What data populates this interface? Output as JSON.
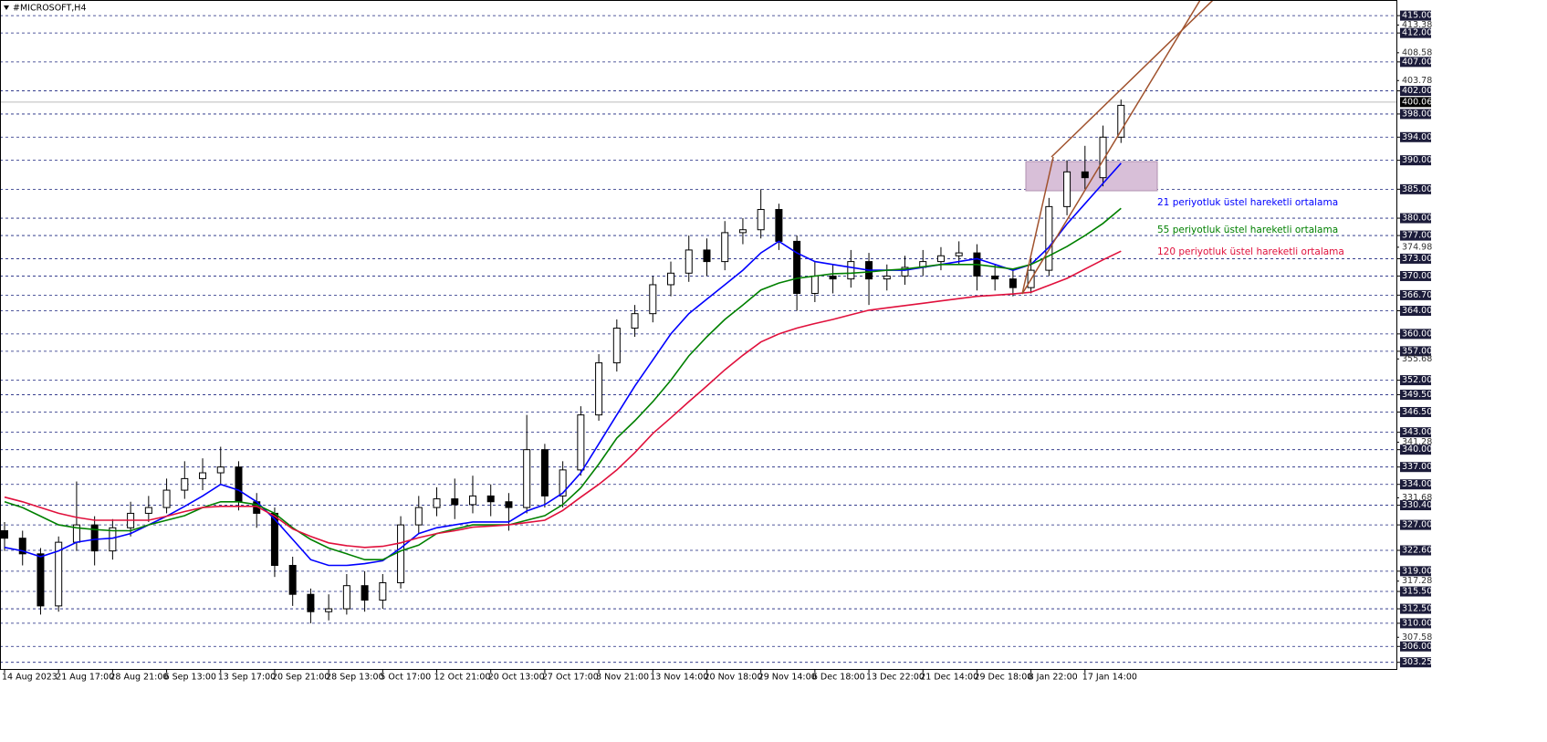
{
  "chart_data": {
    "type": "candlestick",
    "title": "#MICROSOFT,H4",
    "categories": [
      "14 Aug 2023",
      null,
      null,
      "21 Aug 17:00",
      null,
      null,
      "28 Aug 21:00",
      null,
      null,
      "6 Sep 13:00",
      null,
      null,
      "13 Sep 17:00",
      null,
      null,
      "20 Sep 21:00",
      null,
      null,
      "28 Sep 13:00",
      null,
      null,
      "5 Oct 17:00",
      null,
      null,
      "12 Oct 21:00",
      null,
      null,
      "20 Oct 13:00",
      null,
      null,
      "27 Oct 17:00",
      null,
      null,
      "3 Nov 21:00",
      null,
      null,
      "13 Nov 14:00",
      null,
      null,
      "20 Nov 18:00",
      null,
      null,
      "29 Nov 14:00",
      null,
      null,
      "6 Dec 18:00",
      null,
      null,
      "13 Dec 22:00",
      null,
      null,
      "21 Dec 14:00",
      null,
      null,
      "29 Dec 18:00",
      null,
      null,
      "8 Jan 22:00",
      null,
      null,
      "17 Jan 14:00",
      null,
      null
    ],
    "ohlc": {
      "open": [
        326,
        324.7,
        322,
        313,
        324,
        327,
        322.5,
        326.5,
        329,
        330,
        333,
        335,
        336,
        337,
        331,
        329,
        320,
        315,
        312,
        312.5,
        316.5,
        314,
        317,
        327,
        330,
        331.5,
        330.5,
        332,
        331,
        330,
        340,
        332,
        336.5,
        346,
        355,
        361,
        363.5,
        368.5,
        370.5,
        374.5,
        372.5,
        377.5,
        378,
        381.5,
        376,
        367,
        370,
        369.5,
        372.5,
        369.5,
        370,
        371.5,
        372.5,
        373.5,
        374,
        370,
        369.5,
        368,
        371,
        382,
        388,
        387,
        394
      ],
      "high": [
        327.5,
        326,
        323,
        325,
        334.5,
        328.5,
        328,
        331,
        332,
        335,
        338,
        338.5,
        340.5,
        338,
        332.5,
        330,
        321.5,
        316,
        315,
        318.5,
        319,
        318.5,
        328.5,
        332,
        333.5,
        335,
        335.5,
        334,
        332.5,
        346,
        341,
        338,
        347.5,
        356.5,
        362.5,
        365,
        370,
        372.5,
        377,
        376.5,
        379.5,
        380,
        385,
        382.5,
        377,
        372.5,
        372,
        374.5,
        374,
        372,
        373.5,
        374.5,
        375,
        376,
        375.5,
        372,
        371,
        373,
        383.5,
        390,
        392.5,
        396,
        400.5
      ],
      "low": [
        322.5,
        320,
        311.5,
        312,
        322.5,
        320,
        321,
        325,
        327.5,
        329,
        331.5,
        333,
        334,
        329.5,
        326.5,
        318,
        313,
        310,
        310.5,
        311.5,
        312,
        312.5,
        316,
        325.5,
        328.5,
        328,
        329,
        328.5,
        326,
        329,
        330,
        330,
        335.5,
        345,
        353.5,
        359.5,
        362,
        366.5,
        369,
        370,
        371,
        375.5,
        376.5,
        374.5,
        364,
        365.5,
        367,
        368,
        365,
        367.5,
        368.5,
        370,
        371,
        372,
        367.5,
        367.5,
        366.5,
        367,
        370,
        380.5,
        385,
        385.5,
        393
      ],
      "close": [
        324.7,
        322,
        313,
        324,
        327,
        322.5,
        326.5,
        329,
        330,
        333,
        335,
        336,
        337,
        331,
        329,
        320,
        315,
        312,
        312.5,
        316.5,
        314,
        317,
        327,
        330,
        331.5,
        330.5,
        332,
        331,
        330,
        340,
        332,
        336.5,
        346,
        355,
        361,
        363.5,
        368.5,
        370.5,
        374.5,
        372.5,
        377.5,
        378,
        381.5,
        376,
        367,
        370,
        369.5,
        372.5,
        369.5,
        370,
        371.5,
        372.5,
        373.5,
        374,
        370,
        369.5,
        368,
        371,
        382,
        388,
        387,
        394,
        399.5
      ]
    },
    "series": [
      {
        "name": "21 periyotluk üstel hareketli ortalama",
        "color": "#0000ff",
        "values": [
          323.1,
          322.5,
          321.5,
          322.5,
          324,
          324.5,
          324.7,
          325.5,
          327,
          328.5,
          330.2,
          332,
          334,
          333,
          331,
          328,
          324.5,
          321,
          320,
          320,
          320.3,
          320.8,
          323,
          325.5,
          326.5,
          327,
          327.5,
          327.5,
          327.5,
          329.4,
          330.5,
          332.5,
          336,
          341,
          346,
          351,
          355.5,
          360,
          363.5,
          366,
          368.5,
          371,
          374,
          376,
          374,
          372.5,
          372,
          371.5,
          371,
          371,
          371,
          371.5,
          372,
          372.5,
          373,
          372,
          371,
          372,
          375,
          379,
          382.5,
          386,
          389.5
        ]
      },
      {
        "name": "55 periyotluk üstel hareketli ortalama",
        "color": "#008000",
        "values": [
          331,
          330,
          328.5,
          327,
          326.5,
          326.2,
          326,
          326,
          327,
          327.8,
          328.6,
          330,
          331,
          331,
          330.5,
          329,
          326.5,
          324.5,
          323,
          322,
          321,
          321,
          322.5,
          323.5,
          325.5,
          326.3,
          327,
          327,
          327,
          327.8,
          328.6,
          330.5,
          333.4,
          337.5,
          342,
          345,
          348.3,
          352,
          356.2,
          359.5,
          362.5,
          365,
          367.6,
          368.8,
          369.6,
          370,
          370.4,
          370.5,
          370.7,
          371,
          371.2,
          371.6,
          372,
          372,
          372,
          371.6,
          371.2,
          372,
          373.5,
          375.1,
          377,
          379.1,
          381.7
        ]
      },
      {
        "name": "120 periyotluk üstel hareketli ortalama",
        "color": "#e0103c",
        "values": [
          331.8,
          331,
          330,
          329,
          328.3,
          327.8,
          327.8,
          327.8,
          327.8,
          328.5,
          329.3,
          330,
          330.2,
          330.2,
          330.2,
          328.5,
          326.3,
          325,
          323.9,
          323.4,
          323.1,
          323.3,
          323.9,
          324.8,
          325.5,
          326,
          326.6,
          326.8,
          327,
          327.4,
          327.8,
          329.5,
          331.8,
          334,
          336.5,
          339.5,
          342.8,
          345.5,
          348.3,
          351,
          353.8,
          356.3,
          358.6,
          360,
          361,
          361.8,
          362.5,
          363.3,
          364.1,
          364.5,
          364.9,
          365.3,
          365.7,
          366.1,
          366.5,
          366.7,
          366.9,
          367.2,
          368.4,
          369.6,
          371.2,
          372.8,
          374.3
        ]
      }
    ],
    "ylim": [
      302.1,
      417.7
    ],
    "yticks": [
      {
        "value": 415,
        "label": "415.00"
      },
      {
        "value": 412,
        "label": "412.00"
      },
      {
        "value": 407,
        "label": "407.00"
      },
      {
        "value": 402,
        "label": "402.00"
      },
      {
        "value": 398,
        "label": "398.00"
      },
      {
        "value": 394,
        "label": "394.00"
      },
      {
        "value": 390,
        "label": "390.00"
      },
      {
        "value": 385,
        "label": "385.00"
      },
      {
        "value": 380,
        "label": "380.00"
      },
      {
        "value": 377,
        "label": "377.00"
      },
      {
        "value": 373,
        "label": "373.00"
      },
      {
        "value": 370,
        "label": "370.00"
      },
      {
        "value": 366.7,
        "label": "366.70"
      },
      {
        "value": 364,
        "label": "364.00"
      },
      {
        "value": 360,
        "label": "360.00"
      },
      {
        "value": 357,
        "label": "357.00"
      },
      {
        "value": 352,
        "label": "352.00"
      },
      {
        "value": 349.5,
        "label": "349.50"
      },
      {
        "value": 346.5,
        "label": "346.50"
      },
      {
        "value": 343,
        "label": "343.00"
      },
      {
        "value": 340,
        "label": "340.00"
      },
      {
        "value": 337,
        "label": "337.00"
      },
      {
        "value": 334,
        "label": "334.00"
      },
      {
        "value": 330.4,
        "label": "330.40"
      },
      {
        "value": 327,
        "label": "327.00"
      },
      {
        "value": 322.6,
        "label": "322.60"
      },
      {
        "value": 319,
        "label": "319.00"
      },
      {
        "value": 315.5,
        "label": "315.50"
      },
      {
        "value": 312.5,
        "label": "312.50"
      },
      {
        "value": 310,
        "label": "310.00"
      },
      {
        "value": 306,
        "label": "306.00"
      },
      {
        "value": 303.25,
        "label": "303.25"
      }
    ],
    "minor_yticks": [
      413.38,
      408.58,
      403.78,
      374.98,
      355.68,
      341.28,
      331.68,
      317.28,
      307.58
    ],
    "current_price": {
      "value": 400.06,
      "label": "400.06"
    },
    "grid": true
  }
}
